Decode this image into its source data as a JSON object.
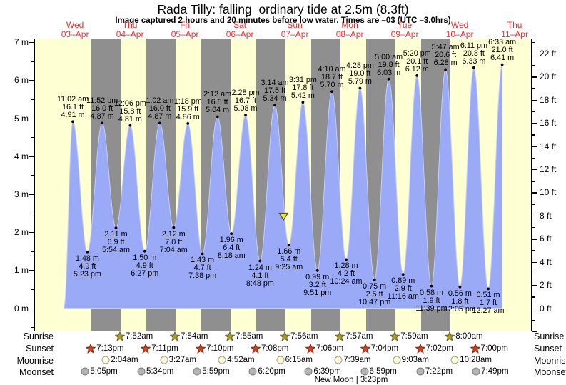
{
  "title": "Rada Tilly: falling  ordinary tide at 2.5m (8.3ft)",
  "subtitle": "Image captured 2 hours and 20 minutes before low water. Times are –03 (UTC –3.0hrs)",
  "colors": {
    "day_bg": "#ffffd4",
    "night_bg": "#8f8f8f",
    "tide_fill": "#9aaaf7",
    "day_label_red": "#e83030",
    "sunrise_star_fill": "#a59b2e",
    "sunrise_star_stroke": "#6b6420",
    "sunset_star_fill": "#cc4422",
    "sunset_star_stroke": "#7a2a18",
    "moonrise_fill": "#ffffd0",
    "moonrise_stroke": "#9a9a9a",
    "moonset_fill": "#b4b4b4",
    "moonset_stroke": "#7d7d7d",
    "marker_fill": "#ece23e",
    "marker_stroke": "#55551a"
  },
  "days": [
    {
      "name": "Wed",
      "date": "03–Apr"
    },
    {
      "name": "Thu",
      "date": "04–Apr"
    },
    {
      "name": "Fri",
      "date": "05–Apr"
    },
    {
      "name": "Sat",
      "date": "06–Apr"
    },
    {
      "name": "Sun",
      "date": "07–Apr"
    },
    {
      "name": "Mon",
      "date": "08–Apr"
    },
    {
      "name": "Tue",
      "date": "09–Apr"
    },
    {
      "name": "Wed",
      "date": "10–Apr"
    },
    {
      "name": "Thu",
      "date": "11–Apr"
    }
  ],
  "chart_data": {
    "type": "area",
    "title": "Rada Tilly tide curve",
    "left_axis": {
      "unit": "m",
      "min": 0,
      "max": 7,
      "label_step": 1
    },
    "right_axis": {
      "unit": "ft",
      "min": 0,
      "max": 22,
      "label_step": 2
    },
    "tide_events": [
      {
        "day": 0,
        "type": "H",
        "time": "11:02 am",
        "m": 4.91,
        "ft": 16.1
      },
      {
        "day": 0,
        "type": "L",
        "time": "5:23 pm",
        "m": 1.48,
        "ft": 4.9
      },
      {
        "day": 0,
        "type": "H",
        "time": "11:52 pm",
        "m": 4.87,
        "ft": 16.0
      },
      {
        "day": 1,
        "type": "L",
        "time": "5:54 am",
        "m": 2.11,
        "ft": 6.9
      },
      {
        "day": 1,
        "type": "H",
        "time": "12:06 pm",
        "m": 4.81,
        "ft": 15.8
      },
      {
        "day": 1,
        "type": "L",
        "time": "6:27 pm",
        "m": 1.5,
        "ft": 4.9
      },
      {
        "day": 2,
        "type": "H",
        "time": "1:02 am",
        "m": 4.87,
        "ft": 16.0
      },
      {
        "day": 2,
        "type": "L",
        "time": "7:04 am",
        "m": 2.12,
        "ft": 7.0
      },
      {
        "day": 2,
        "type": "H",
        "time": "1:18 pm",
        "m": 4.86,
        "ft": 15.9
      },
      {
        "day": 2,
        "type": "L",
        "time": "7:38 pm",
        "m": 1.43,
        "ft": 4.7
      },
      {
        "day": 3,
        "type": "H",
        "time": "2:12 am",
        "m": 5.04,
        "ft": 16.5
      },
      {
        "day": 3,
        "type": "L",
        "time": "8:18 am",
        "m": 1.96,
        "ft": 6.4
      },
      {
        "day": 3,
        "type": "H",
        "time": "2:28 pm",
        "m": 5.08,
        "ft": 16.7
      },
      {
        "day": 3,
        "type": "L",
        "time": "8:48 pm",
        "m": 1.24,
        "ft": 4.1
      },
      {
        "day": 4,
        "type": "H",
        "time": "3:14 am",
        "m": 5.34,
        "ft": 17.5
      },
      {
        "day": 4,
        "type": "L",
        "time": "9:25 am",
        "m": 1.66,
        "ft": 5.4
      },
      {
        "day": 4,
        "type": "H",
        "time": "3:31 pm",
        "m": 5.42,
        "ft": 17.8
      },
      {
        "day": 4,
        "type": "L",
        "time": "9:51 pm",
        "m": 0.99,
        "ft": 3.2
      },
      {
        "day": 5,
        "type": "H",
        "time": "4:10 am",
        "m": 5.7,
        "ft": 18.7
      },
      {
        "day": 5,
        "type": "L",
        "time": "10:24 am",
        "m": 1.28,
        "ft": 4.2
      },
      {
        "day": 5,
        "type": "H",
        "time": "4:28 pm",
        "m": 5.79,
        "ft": 19.0
      },
      {
        "day": 5,
        "type": "L",
        "time": "10:47 pm",
        "m": 0.75,
        "ft": 2.5
      },
      {
        "day": 6,
        "type": "H",
        "time": "5:00 am",
        "m": 6.03,
        "ft": 19.8
      },
      {
        "day": 6,
        "type": "L",
        "time": "11:16 am",
        "m": 0.89,
        "ft": 2.9
      },
      {
        "day": 6,
        "type": "H",
        "time": "5:20 pm",
        "m": 6.12,
        "ft": 20.1
      },
      {
        "day": 6,
        "type": "L",
        "time": "11:39 pm",
        "m": 0.58,
        "ft": 1.9
      },
      {
        "day": 7,
        "type": "H",
        "time": "5:47 am",
        "m": 6.28,
        "ft": 20.6
      },
      {
        "day": 7,
        "type": "L",
        "time": "12:05 pm",
        "m": 0.56,
        "ft": 1.8
      },
      {
        "day": 7,
        "type": "H",
        "time": "6:11 pm",
        "m": 6.33,
        "ft": 20.8
      },
      {
        "day": 8,
        "type": "L",
        "time": "12:27 am",
        "m": 0.51,
        "ft": 1.7
      },
      {
        "day": 8,
        "type": "H",
        "time": "6:33 am",
        "m": 6.41,
        "ft": 21.0
      }
    ],
    "current_marker": {
      "height_m": 2.5,
      "height_ft": 8.3,
      "low_day": 4,
      "low_time": "9:25 am",
      "hours_before_low": 2.3333
    }
  },
  "sun_moon": {
    "rows": [
      {
        "label": "Sunrise",
        "icon": "sunrise-star",
        "events": [
          {
            "day": 1,
            "time": "7:52am"
          },
          {
            "day": 2,
            "time": "7:54am"
          },
          {
            "day": 3,
            "time": "7:55am"
          },
          {
            "day": 4,
            "time": "7:56am"
          },
          {
            "day": 5,
            "time": "7:57am"
          },
          {
            "day": 6,
            "time": "7:59am"
          },
          {
            "day": 7,
            "time": "8:00am"
          }
        ]
      },
      {
        "label": "Sunset",
        "icon": "sunset-star",
        "events": [
          {
            "day": 0,
            "time": "7:13pm"
          },
          {
            "day": 1,
            "time": "7:11pm"
          },
          {
            "day": 2,
            "time": "7:10pm"
          },
          {
            "day": 3,
            "time": "7:08pm"
          },
          {
            "day": 4,
            "time": "7:06pm"
          },
          {
            "day": 5,
            "time": "7:04pm"
          },
          {
            "day": 6,
            "time": "7:02pm"
          },
          {
            "day": 7,
            "time": "7:00pm"
          }
        ]
      },
      {
        "label": "Moonrise",
        "icon": "moonrise-circle",
        "events": [
          {
            "day": 1,
            "time": "2:04am"
          },
          {
            "day": 2,
            "time": "3:27am"
          },
          {
            "day": 3,
            "time": "4:52am"
          },
          {
            "day": 4,
            "time": "6:15am"
          },
          {
            "day": 5,
            "time": "7:39am"
          },
          {
            "day": 6,
            "time": "9:03am"
          },
          {
            "day": 7,
            "time": "10:28am"
          }
        ]
      },
      {
        "label": "Moonset",
        "icon": "moonset-circle",
        "events": [
          {
            "day": 0,
            "time": "5:05pm"
          },
          {
            "day": 1,
            "time": "5:34pm"
          },
          {
            "day": 2,
            "time": "5:59pm"
          },
          {
            "day": 3,
            "time": "6:20pm"
          },
          {
            "day": 4,
            "time": "6:39pm"
          },
          {
            "day": 5,
            "time": "6:59pm"
          },
          {
            "day": 6,
            "time": "7:22pm"
          },
          {
            "day": 7,
            "time": "7:49pm"
          }
        ]
      }
    ],
    "new_moon": {
      "text": "New Moon | 3:23pm",
      "day": 5,
      "time": "3:23pm"
    }
  }
}
